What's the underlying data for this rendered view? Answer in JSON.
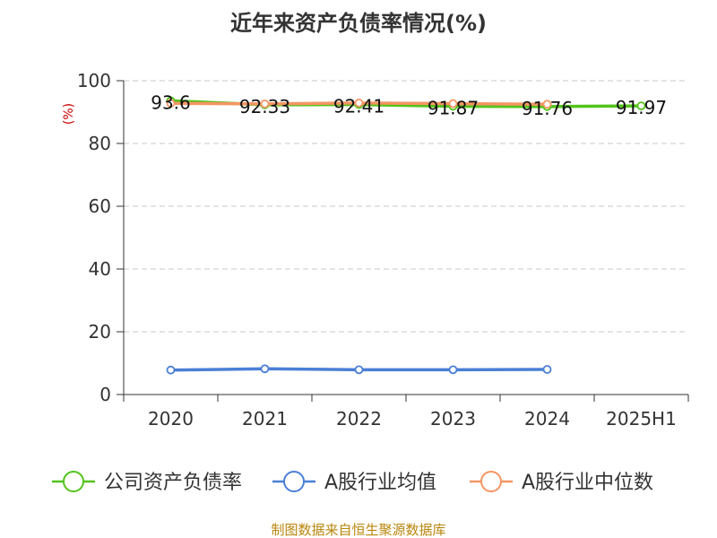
{
  "chart_data": {
    "type": "line",
    "title": "近年来资产负债率情况(%)",
    "ylabel": "(%)",
    "categories": [
      "2020",
      "2021",
      "2022",
      "2023",
      "2024",
      "2025H1"
    ],
    "ylim": [
      0,
      100
    ],
    "yticks": [
      0,
      20,
      40,
      60,
      80,
      100
    ],
    "grid": true,
    "legend_position": "bottom",
    "series": [
      {
        "name": "公司资产负债率",
        "color": "#52c41a",
        "values": [
          93.6,
          92.33,
          92.41,
          91.87,
          91.76,
          91.97
        ],
        "labels": [
          "93.6",
          "92.33",
          "92.41",
          "91.87",
          "91.76",
          "91.97"
        ]
      },
      {
        "name": "A股行业均值",
        "color": "#4a7fd6",
        "values": [
          7.8,
          8.2,
          7.9,
          7.9,
          8.0,
          null
        ]
      },
      {
        "name": "A股行业中位数",
        "color": "#f59563",
        "values": [
          92.8,
          92.6,
          92.9,
          92.7,
          92.5,
          null
        ]
      }
    ],
    "source": "制图数据来自恒生聚源数据库"
  }
}
